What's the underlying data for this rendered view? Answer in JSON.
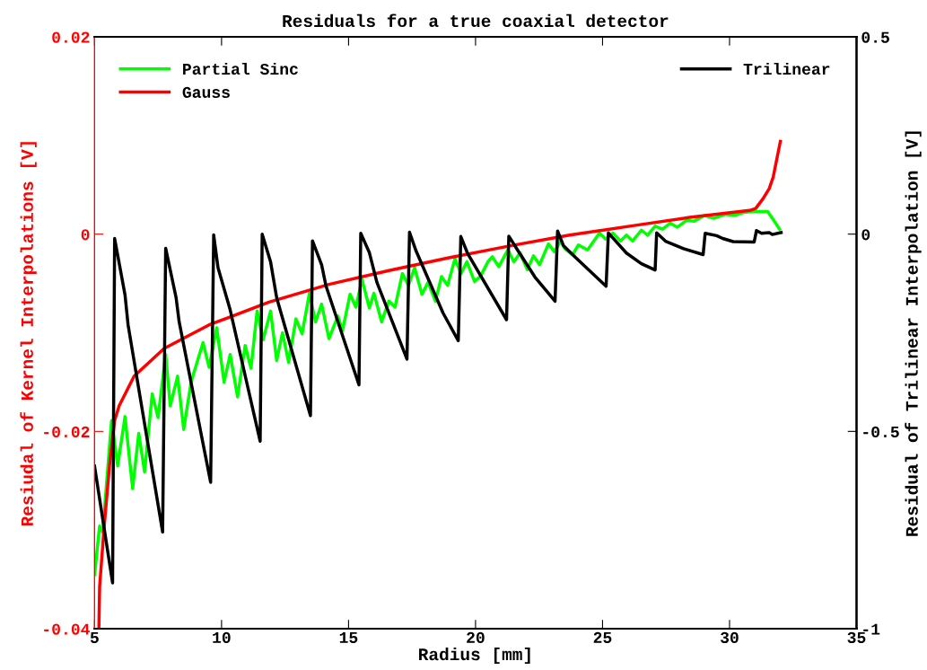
{
  "chart_data": {
    "type": "line",
    "title": "Residuals for a true coaxial detector",
    "xlabel": "Radius [mm]",
    "ylabel": "Resiudal of Kernel Interpolations [V]",
    "y2label": "Residual of Trilinear Interpolation [V]",
    "xlim": [
      5,
      35
    ],
    "xticks": [
      5,
      10,
      15,
      20,
      25,
      30,
      35
    ],
    "ylim": [
      -0.04,
      0.02
    ],
    "yticks": [
      -0.04,
      -0.02,
      0,
      0.02
    ],
    "y2lim": [
      -1,
      0.5
    ],
    "y2ticks": [
      -1,
      -0.5,
      0,
      0.5
    ],
    "grid": false,
    "legend": "top",
    "marker": "none",
    "line_style": "solid",
    "series": [
      {
        "name": "Partial Sinc",
        "color": "#00ff00",
        "x": [
          5.0,
          5.2,
          5.32,
          5.67,
          5.91,
          6.2,
          6.5,
          6.74,
          6.97,
          7.27,
          7.5,
          7.8,
          7.98,
          8.27,
          8.51,
          8.8,
          9.27,
          9.51,
          9.81,
          10.1,
          10.34,
          10.63,
          10.93,
          11.16,
          11.4,
          11.64,
          11.93,
          12.17,
          12.4,
          12.64,
          12.93,
          13.17,
          13.46,
          13.7,
          13.94,
          14.23,
          14.58,
          14.76,
          15.06,
          15.29,
          15.53,
          15.82,
          16.0,
          16.3,
          16.59,
          16.83,
          17.12,
          17.36,
          17.6,
          17.89,
          18.13,
          18.42,
          18.66,
          18.9,
          19.19,
          19.43,
          19.66,
          19.96,
          20.19,
          20.49,
          20.66,
          20.92,
          21.27,
          21.51,
          21.75,
          22.04,
          22.28,
          22.52,
          22.87,
          23.11,
          23.34,
          23.52,
          23.82,
          24.05,
          24.41,
          24.88,
          25.12,
          25.41,
          25.71,
          25.94,
          26.18,
          26.53,
          26.77,
          27.07,
          27.36,
          27.66,
          27.95,
          28.31,
          28.6,
          29.02,
          29.37,
          29.84,
          30.2,
          30.55,
          30.91,
          31.5,
          31.74,
          31.97
        ],
        "values": [
          -0.0345,
          -0.0296,
          -0.0302,
          -0.0189,
          -0.0235,
          -0.0185,
          -0.0258,
          -0.0202,
          -0.0241,
          -0.0162,
          -0.0186,
          -0.0122,
          -0.0174,
          -0.0144,
          -0.0198,
          -0.015,
          -0.011,
          -0.0135,
          -0.0095,
          -0.015,
          -0.0122,
          -0.0165,
          -0.0113,
          -0.0136,
          -0.0078,
          -0.0107,
          -0.0078,
          -0.0128,
          -0.01,
          -0.013,
          -0.0086,
          -0.0101,
          -0.006,
          -0.0089,
          -0.0071,
          -0.0106,
          -0.0083,
          -0.0098,
          -0.0061,
          -0.0074,
          -0.0046,
          -0.0075,
          -0.006,
          -0.0089,
          -0.0068,
          -0.0074,
          -0.004,
          -0.0052,
          -0.0034,
          -0.0061,
          -0.0049,
          -0.0068,
          -0.0043,
          -0.0052,
          -0.0025,
          -0.004,
          -0.0028,
          -0.0048,
          -0.0043,
          -0.0028,
          -0.0023,
          -0.0033,
          -0.0016,
          -0.0028,
          -0.0019,
          -0.0036,
          -0.0022,
          -0.0031,
          -0.001,
          -0.0018,
          -0.0007,
          -0.0015,
          -0.0021,
          -0.0011,
          -0.0016,
          0.0001,
          -0.0005,
          0.0001,
          -0.0007,
          -0.0001,
          -0.0007,
          0.0004,
          -0.0001,
          0.0008,
          0.0005,
          0.0011,
          0.0007,
          0.0014,
          0.0013,
          0.0019,
          0.0016,
          0.002,
          0.0019,
          0.0022,
          0.0023,
          0.0023,
          0.0014,
          0.0005
        ]
      },
      {
        "name": "Gauss",
        "color": "#ff0000",
        "x": [
          5.17,
          5.2,
          5.38,
          5.61,
          5.79,
          5.97,
          6.56,
          7.74,
          9.51,
          11.87,
          14.23,
          16.59,
          18.95,
          21.33,
          23.7,
          26.06,
          28.43,
          30.79,
          31.03,
          31.32,
          31.56,
          31.72,
          32.0
        ],
        "values": [
          -0.04,
          -0.0357,
          -0.0296,
          -0.0229,
          -0.0189,
          -0.0174,
          -0.0144,
          -0.0116,
          -0.0092,
          -0.0069,
          -0.0051,
          -0.0037,
          -0.0024,
          -0.0012,
          -0.0001,
          0.0008,
          0.0017,
          0.0024,
          0.0026,
          0.0036,
          0.0046,
          0.0058,
          0.0094
        ]
      },
      {
        "name": "Trilinear",
        "color": "#000000",
        "axis": "y2",
        "x": [
          5.0,
          5.71,
          5.79,
          6.2,
          6.32,
          7.68,
          7.8,
          8.21,
          8.33,
          9.57,
          9.69,
          9.86,
          10.34,
          11.52,
          11.6,
          11.93,
          12.17,
          13.5,
          13.58,
          13.94,
          14.11,
          15.41,
          15.48,
          15.82,
          16.12,
          17.3,
          17.4,
          17.66,
          18.72,
          19.32,
          19.42,
          19.68,
          21.22,
          21.31,
          21.69,
          22.34,
          23.13,
          23.23,
          23.46,
          23.93,
          25.14,
          25.23,
          25.94,
          26.53,
          27.07,
          27.13,
          27.48,
          28.19,
          28.96,
          29.04,
          29.49,
          29.73,
          30.14,
          30.97,
          31.06,
          31.26,
          31.56,
          31.68,
          32.03
        ],
        "values": [
          -0.588,
          -0.884,
          -0.011,
          -0.154,
          -0.23,
          -0.755,
          -0.036,
          -0.161,
          -0.222,
          -0.629,
          -0.002,
          -0.085,
          -0.192,
          -0.525,
          0.0,
          -0.07,
          -0.161,
          -0.46,
          -0.017,
          -0.078,
          -0.131,
          -0.382,
          0.002,
          -0.047,
          -0.123,
          -0.317,
          0.005,
          -0.043,
          -0.2,
          -0.27,
          -0.006,
          -0.048,
          -0.217,
          -0.005,
          -0.044,
          -0.109,
          -0.17,
          0.008,
          -0.029,
          -0.059,
          -0.132,
          0.003,
          -0.048,
          -0.075,
          -0.091,
          0.003,
          -0.018,
          -0.037,
          -0.052,
          0.002,
          -0.004,
          -0.011,
          -0.019,
          -0.02,
          0.009,
          0.002,
          0.004,
          -0.001,
          0.004
        ]
      }
    ]
  }
}
